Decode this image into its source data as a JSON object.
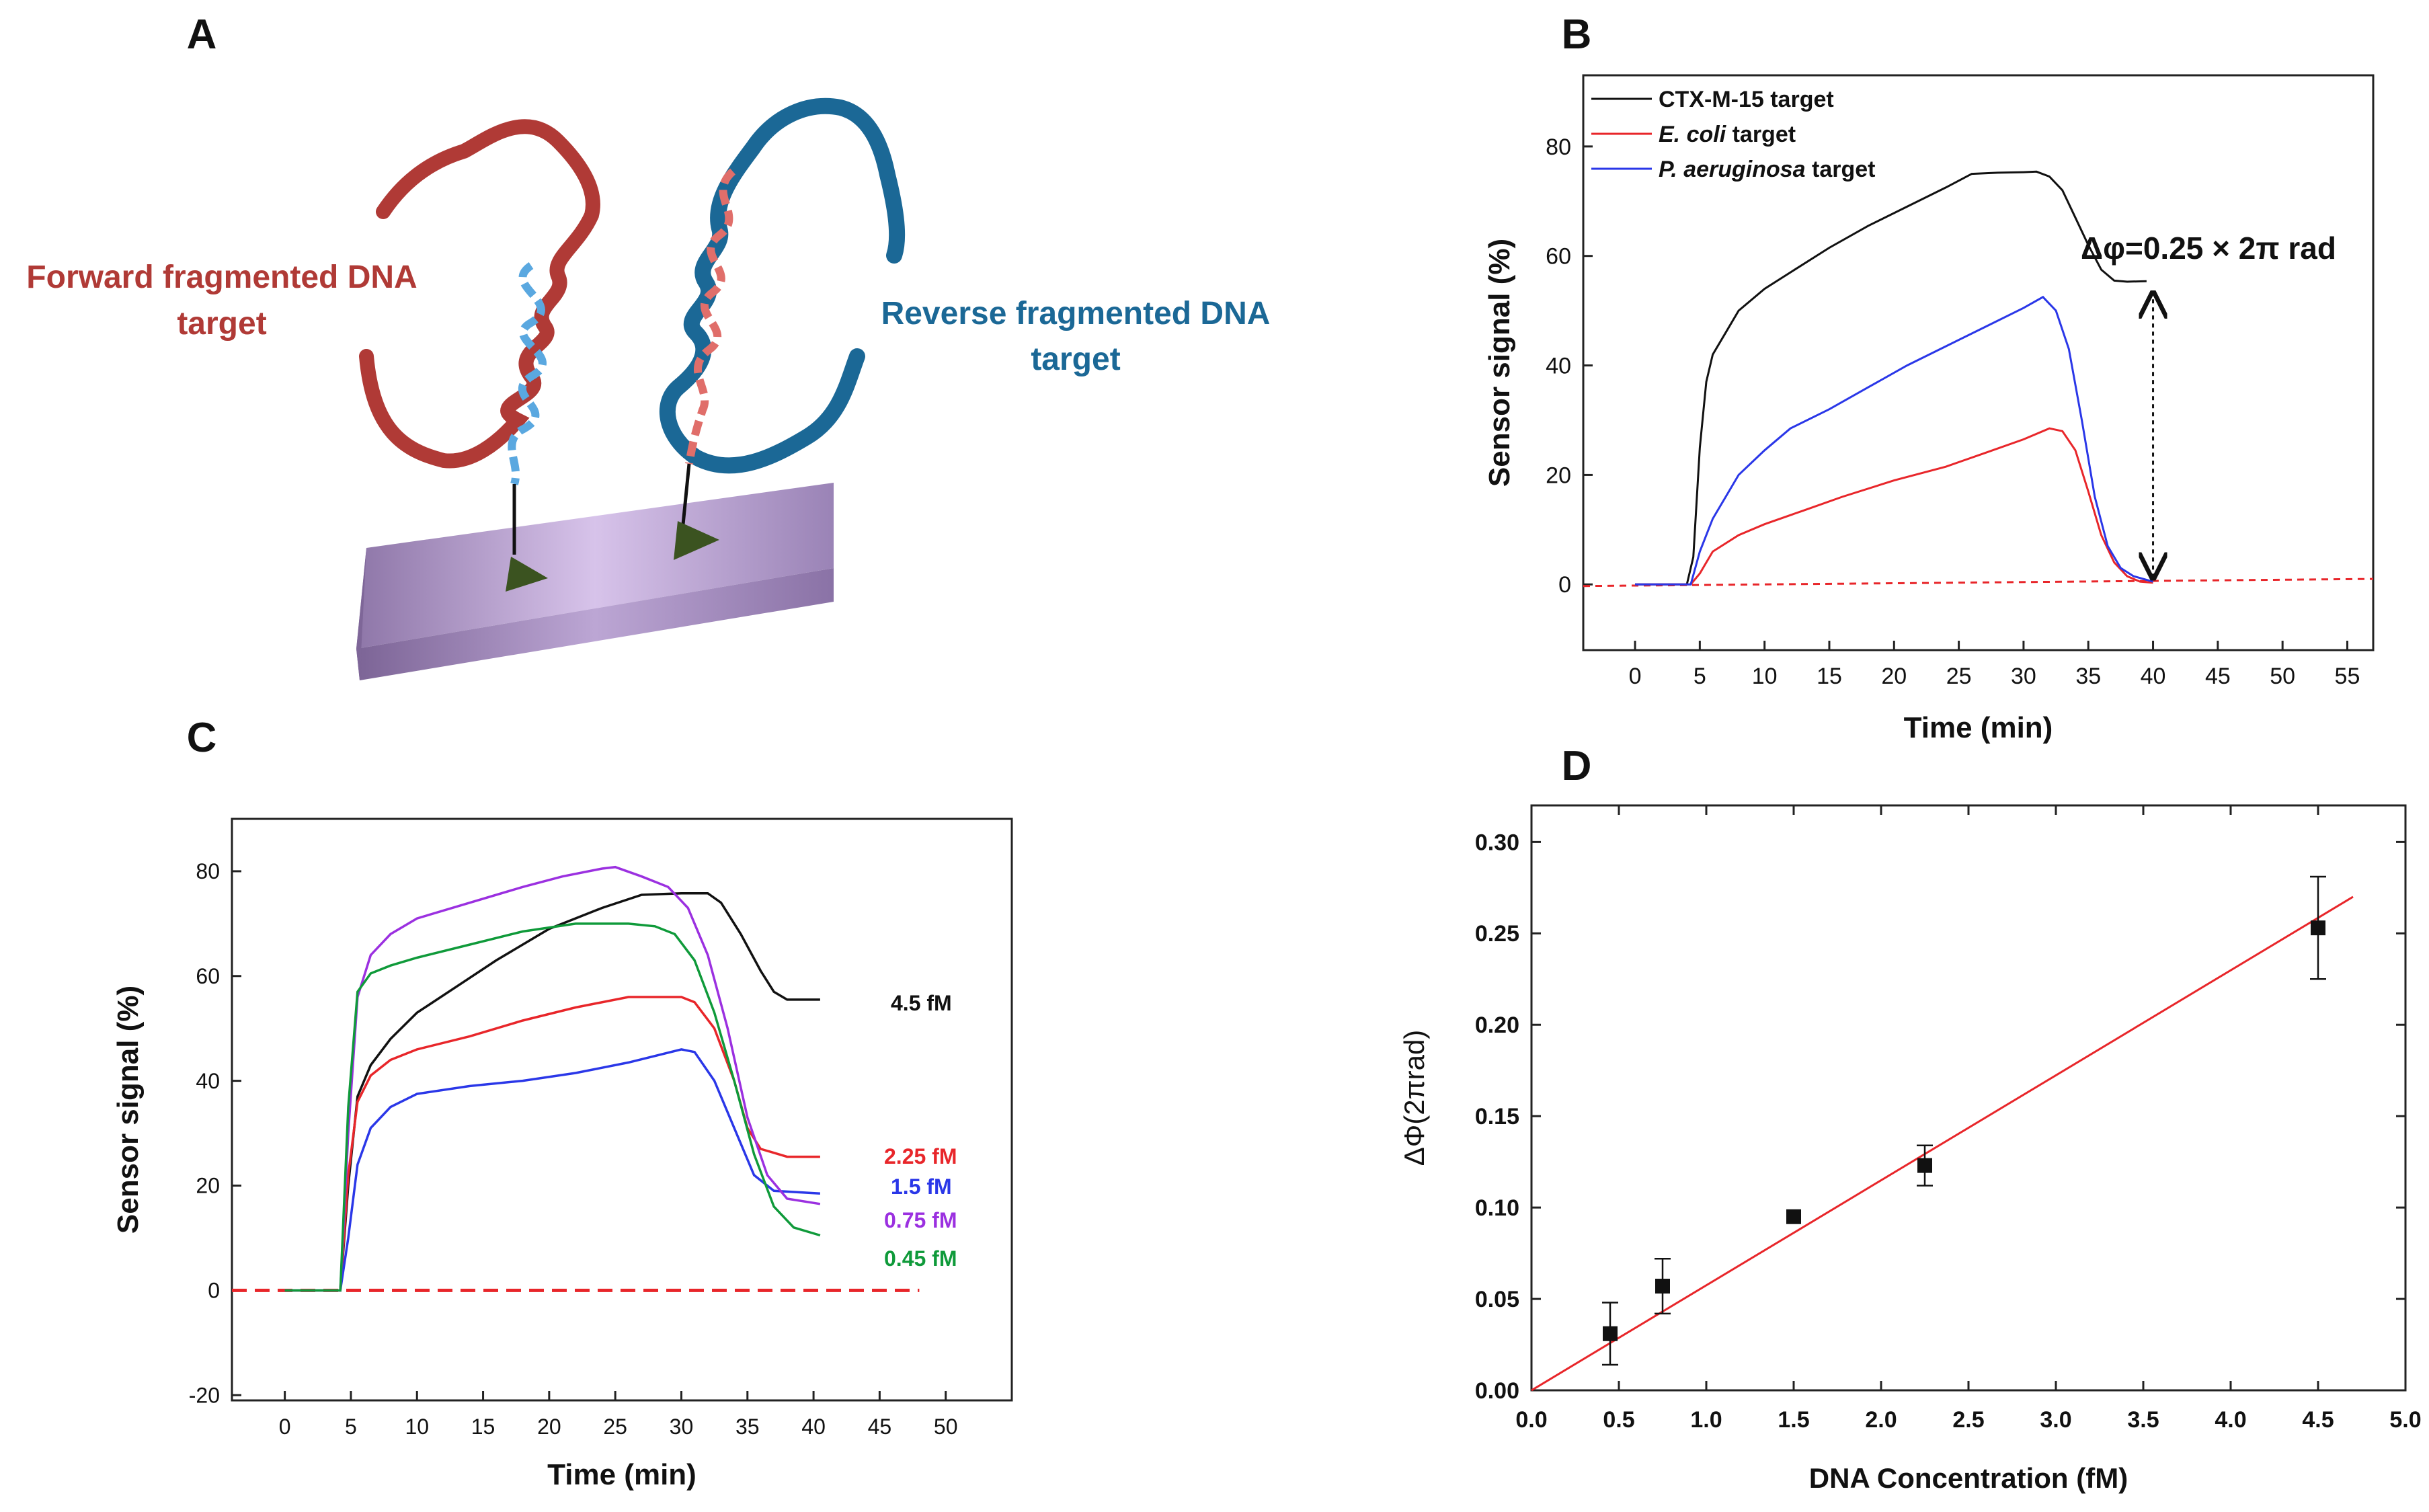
{
  "panels": {
    "A": {
      "letter": "A",
      "forward_line1": "Forward fragmented DNA",
      "forward_line2": "target",
      "reverse_line1": "Reverse fragmented DNA",
      "reverse_line2": "target"
    },
    "B": {
      "letter": "B",
      "annotation": "Δφ=0.25 × 2π rad"
    },
    "C": {
      "letter": "C"
    },
    "D": {
      "letter": "D"
    }
  },
  "colors": {
    "forward": "#b03a36",
    "reverse": "#1b6896",
    "substrate": "#b8a0d0",
    "anchor": "#3b5320",
    "black": "#111111",
    "red": "#e8262a",
    "blue": "#2a37e8",
    "purple": "#9b30e0",
    "green": "#0f9a3a"
  },
  "chart_data": [
    {
      "id": "B",
      "type": "line",
      "title": "",
      "xlabel": "Time (min)",
      "ylabel": "Sensor signal (%)",
      "xlim": [
        -4,
        57
      ],
      "ylim": [
        -12,
        93
      ],
      "xticks": [
        0,
        5,
        10,
        15,
        20,
        25,
        30,
        35,
        40,
        45,
        50,
        55
      ],
      "yticks": [
        0,
        20,
        40,
        60,
        80
      ],
      "legend_position": "top-left",
      "series": [
        {
          "name": "CTX-M-15 target",
          "legend_prefix": "",
          "legend_italic": "",
          "legend_suffix": "CTX-M-15 target",
          "color": "#111111",
          "points": [
            [
              0,
              0
            ],
            [
              4,
              0
            ],
            [
              4.5,
              5
            ],
            [
              5,
              25
            ],
            [
              5.5,
              37
            ],
            [
              6,
              42
            ],
            [
              7,
              46
            ],
            [
              8,
              50
            ],
            [
              10,
              54
            ],
            [
              12,
              57
            ],
            [
              15,
              61.5
            ],
            [
              18,
              65.5
            ],
            [
              21,
              69
            ],
            [
              24,
              72.5
            ],
            [
              26,
              75
            ],
            [
              28,
              75.2
            ],
            [
              30,
              75.3
            ],
            [
              31,
              75.4
            ],
            [
              32,
              74.5
            ],
            [
              33,
              72
            ],
            [
              34,
              67
            ],
            [
              35,
              62
            ],
            [
              36,
              57.5
            ],
            [
              37,
              55.5
            ],
            [
              38,
              55.3
            ],
            [
              39.5,
              55.4
            ]
          ]
        },
        {
          "name": "E. coli target",
          "legend_prefix": "",
          "legend_italic": "E. coli",
          "legend_suffix": " target",
          "color": "#e8262a",
          "points": [
            [
              0,
              0
            ],
            [
              4.3,
              0
            ],
            [
              5,
              2
            ],
            [
              6,
              6
            ],
            [
              8,
              9
            ],
            [
              10,
              11
            ],
            [
              13,
              13.5
            ],
            [
              16,
              16
            ],
            [
              20,
              19
            ],
            [
              24,
              21.5
            ],
            [
              27,
              24
            ],
            [
              30,
              26.5
            ],
            [
              32,
              28.5
            ],
            [
              33,
              28
            ],
            [
              34,
              24.5
            ],
            [
              35,
              17
            ],
            [
              36,
              9
            ],
            [
              37,
              4
            ],
            [
              38,
              1.5
            ],
            [
              39,
              0.5
            ],
            [
              40,
              0.3
            ]
          ]
        },
        {
          "name": "P. aeruginosa target",
          "legend_prefix": "",
          "legend_italic": "P. aeruginosa",
          "legend_suffix": " target",
          "color": "#2a37e8",
          "points": [
            [
              0,
              0
            ],
            [
              4.3,
              0
            ],
            [
              5,
              6
            ],
            [
              6,
              12
            ],
            [
              7,
              16
            ],
            [
              8,
              20
            ],
            [
              10,
              24.5
            ],
            [
              12,
              28.5
            ],
            [
              15,
              32
            ],
            [
              18,
              36
            ],
            [
              21,
              40
            ],
            [
              24,
              43.5
            ],
            [
              27,
              47
            ],
            [
              30,
              50.5
            ],
            [
              31.5,
              52.5
            ],
            [
              32.5,
              50
            ],
            [
              33.5,
              43
            ],
            [
              34.5,
              30
            ],
            [
              35.5,
              16
            ],
            [
              36.5,
              7
            ],
            [
              37.5,
              3
            ],
            [
              38.5,
              1.5
            ],
            [
              40,
              0.5
            ]
          ]
        }
      ],
      "baseline": {
        "name": "baseline",
        "color": "#e8262a",
        "points": [
          [
            -4,
            -0.3
          ],
          [
            57,
            1
          ]
        ]
      },
      "arrow": {
        "x": 40,
        "y1": 0.5,
        "y2": 55.4
      }
    },
    {
      "id": "C",
      "type": "line",
      "title": "",
      "xlabel": "Time (min)",
      "ylabel": "Sensor signal (%)",
      "xlim": [
        -4,
        55
      ],
      "ylim": [
        -21,
        90
      ],
      "xticks": [
        0,
        5,
        10,
        15,
        20,
        25,
        30,
        35,
        40,
        45,
        50
      ],
      "yticks": [
        -20,
        0,
        20,
        40,
        60,
        80
      ],
      "series": [
        {
          "name": "4.5 fM",
          "label": "4.5 fM",
          "color": "#111111",
          "points": [
            [
              0,
              0
            ],
            [
              4.2,
              0
            ],
            [
              4.8,
              20
            ],
            [
              5.5,
              37
            ],
            [
              6.5,
              43
            ],
            [
              8,
              48
            ],
            [
              10,
              53
            ],
            [
              13,
              58
            ],
            [
              16,
              63
            ],
            [
              20,
              69
            ],
            [
              24,
              73
            ],
            [
              27,
              75.5
            ],
            [
              30,
              75.8
            ],
            [
              32,
              75.8
            ],
            [
              33,
              74
            ],
            [
              34.5,
              68
            ],
            [
              36,
              61
            ],
            [
              37,
              57
            ],
            [
              38,
              55.5
            ],
            [
              40.5,
              55.5
            ]
          ]
        },
        {
          "name": "2.25 fM",
          "label": "2.25 fM",
          "color": "#e8262a",
          "points": [
            [
              0,
              0
            ],
            [
              4.2,
              0
            ],
            [
              4.8,
              22
            ],
            [
              5.5,
              36
            ],
            [
              6.5,
              41
            ],
            [
              8,
              44
            ],
            [
              10,
              46
            ],
            [
              14,
              48.5
            ],
            [
              18,
              51.5
            ],
            [
              22,
              54
            ],
            [
              26,
              56
            ],
            [
              30,
              56
            ],
            [
              31,
              55
            ],
            [
              32.5,
              50
            ],
            [
              34,
              40
            ],
            [
              35,
              31
            ],
            [
              36,
              27
            ],
            [
              38,
              25.5
            ],
            [
              40.5,
              25.5
            ]
          ]
        },
        {
          "name": "1.5 fM",
          "label": "1.5  fM",
          "color": "#2a37e8",
          "points": [
            [
              0,
              0
            ],
            [
              4.2,
              0
            ],
            [
              4.8,
              10
            ],
            [
              5.5,
              24
            ],
            [
              6.5,
              31
            ],
            [
              8,
              35
            ],
            [
              10,
              37.5
            ],
            [
              14,
              39
            ],
            [
              18,
              40
            ],
            [
              22,
              41.5
            ],
            [
              26,
              43.5
            ],
            [
              30,
              46
            ],
            [
              31,
              45.5
            ],
            [
              32.5,
              40
            ],
            [
              34,
              31
            ],
            [
              35.5,
              22
            ],
            [
              37,
              19
            ],
            [
              40.5,
              18.5
            ]
          ]
        },
        {
          "name": "0.75 fM",
          "label": "0.75 fM",
          "color": "#9b30e0",
          "points": [
            [
              0,
              0
            ],
            [
              4.2,
              0
            ],
            [
              4.8,
              30
            ],
            [
              5.5,
              56
            ],
            [
              6.5,
              64
            ],
            [
              8,
              68
            ],
            [
              10,
              71
            ],
            [
              14,
              74
            ],
            [
              18,
              77
            ],
            [
              21,
              79
            ],
            [
              24,
              80.5
            ],
            [
              25,
              80.8
            ],
            [
              27,
              79
            ],
            [
              29,
              77
            ],
            [
              30.5,
              73
            ],
            [
              32,
              64
            ],
            [
              33.5,
              50
            ],
            [
              35,
              33
            ],
            [
              36.5,
              22
            ],
            [
              38,
              17.5
            ],
            [
              40.5,
              16.5
            ]
          ]
        },
        {
          "name": "0.45 fM",
          "label": "0.45 fM",
          "color": "#0f9a3a",
          "points": [
            [
              0,
              0
            ],
            [
              4.2,
              0
            ],
            [
              4.8,
              35
            ],
            [
              5.5,
              57
            ],
            [
              6.5,
              60.5
            ],
            [
              8,
              62
            ],
            [
              10,
              63.5
            ],
            [
              14,
              66
            ],
            [
              18,
              68.5
            ],
            [
              22,
              70
            ],
            [
              26,
              70
            ],
            [
              28,
              69.5
            ],
            [
              29.5,
              68
            ],
            [
              31,
              63
            ],
            [
              32.5,
              53
            ],
            [
              34,
              40
            ],
            [
              35.5,
              26
            ],
            [
              37,
              16
            ],
            [
              38.5,
              12
            ],
            [
              40.5,
              10.5
            ]
          ]
        }
      ],
      "baseline": {
        "name": "baseline",
        "color": "#e8262a",
        "points": [
          [
            -4,
            0
          ],
          [
            48,
            0
          ]
        ]
      }
    },
    {
      "id": "D",
      "type": "scatter",
      "title": "",
      "xlabel": "DNA Concentration (fM)",
      "ylabel": "ΔΦ(2πrad)",
      "xlim": [
        0,
        5.0
      ],
      "ylim": [
        0,
        0.32
      ],
      "xticks": [
        "0.0",
        "0.5",
        "1.0",
        "1.5",
        "2.0",
        "2.5",
        "3.0",
        "3.5",
        "4.0",
        "4.5",
        "5.0"
      ],
      "yticks": [
        "0.00",
        "0.05",
        "0.10",
        "0.15",
        "0.20",
        "0.25",
        "0.30"
      ],
      "points": [
        {
          "x": 0.45,
          "y": 0.031,
          "err": 0.017
        },
        {
          "x": 0.75,
          "y": 0.057,
          "err": 0.015
        },
        {
          "x": 1.5,
          "y": 0.095,
          "err": 0
        },
        {
          "x": 2.25,
          "y": 0.123,
          "err": 0.011
        },
        {
          "x": 4.5,
          "y": 0.253,
          "err": 0.028
        }
      ],
      "fit": {
        "x": [
          0,
          4.7
        ],
        "y": [
          0,
          0.27
        ],
        "color": "#e8262a"
      }
    }
  ]
}
